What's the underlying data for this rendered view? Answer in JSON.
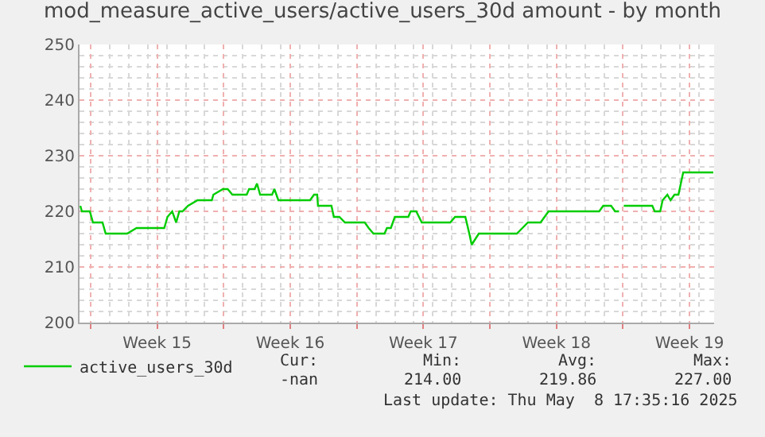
{
  "chart_data": {
    "type": "line",
    "title": "mod_measure_active_users/active_users_30d amount - by month",
    "x": [
      "2025-04-06T11:00",
      "2025-04-06T13:00",
      "2025-04-06T23:00",
      "2025-04-07T03:00",
      "2025-04-07T15:00",
      "2025-04-07T19:00",
      "2025-04-08T22:00",
      "2025-04-09T10:00",
      "2025-04-10T21:00",
      "2025-04-11T01:00",
      "2025-04-11T07:00",
      "2025-04-11T12:00",
      "2025-04-11T16:00",
      "2025-04-11T20:00",
      "2025-04-12T03:00",
      "2025-04-12T15:00",
      "2025-04-13T09:00",
      "2025-04-13T11:00",
      "2025-04-13T23:00",
      "2025-04-14T05:00",
      "2025-04-14T11:00",
      "2025-04-15T05:00",
      "2025-04-15T08:00",
      "2025-04-15T15:00",
      "2025-04-15T18:00",
      "2025-04-15T22:00",
      "2025-04-16T13:00",
      "2025-04-16T16:00",
      "2025-04-16T21:00",
      "2025-04-18T13:00",
      "2025-04-18T18:00",
      "2025-04-18T22:00",
      "2025-04-18T23:00",
      "2025-04-19T16:00",
      "2025-04-19T19:00",
      "2025-04-20T02:00",
      "2025-04-20T09:00",
      "2025-04-21T10:00",
      "2025-04-21T15:00",
      "2025-04-21T21:00",
      "2025-04-22T11:00",
      "2025-04-22T14:00",
      "2025-04-22T19:00",
      "2025-04-23T00:00",
      "2025-04-23T17:00",
      "2025-04-23T20:00",
      "2025-04-24T03:00",
      "2025-04-24T10:00",
      "2025-04-25T22:00",
      "2025-04-26T04:00",
      "2025-04-26T17:00",
      "2025-04-26T22:00",
      "2025-04-27T01:00",
      "2025-04-27T10:00",
      "2025-04-29T10:00",
      "2025-04-29T17:00",
      "2025-04-30T00:00",
      "2025-04-30T16:00",
      "2025-05-01T02:00",
      "2025-05-03T18:00",
      "2025-05-03T23:00",
      "2025-05-04T09:00",
      "2025-05-04T14:00",
      "2025-05-04T19:00",
      "2025-05-05T00:00",
      "2025-05-05T01:00",
      "2025-05-06T13:00",
      "2025-05-06T16:00",
      "2025-05-06T23:00",
      "2025-05-07T02:00",
      "2025-05-07T08:00",
      "2025-05-07T12:00",
      "2025-05-07T17:00",
      "2025-05-07T22:00",
      "2025-05-08T04:00",
      "2025-05-09T18:00"
    ],
    "series": [
      {
        "name": "active_users_30d",
        "color": "#00cc00",
        "values": [
          221,
          220,
          220,
          218,
          218,
          216,
          216,
          217,
          217,
          219,
          220,
          218,
          220,
          220,
          221,
          222,
          222,
          223,
          224,
          224,
          223,
          223,
          224,
          224,
          225,
          223,
          223,
          224,
          222,
          222,
          223,
          223,
          221,
          221,
          219,
          219,
          218,
          218,
          217,
          216,
          216,
          217,
          217,
          219,
          219,
          220,
          220,
          218,
          218,
          219,
          219,
          216,
          214,
          216,
          216,
          217,
          218,
          218,
          220,
          220,
          221,
          221,
          220,
          220,
          null,
          221,
          221,
          220,
          220,
          222,
          223,
          222,
          223,
          223,
          227,
          227
        ]
      }
    ],
    "xlim": [
      "2025-04-06T10:00",
      "2025-05-09T19:00"
    ],
    "xticks": [
      {
        "value": "2025-04-07",
        "label": null
      },
      {
        "value": "2025-04-10T12:00",
        "label": "Week 15"
      },
      {
        "value": "2025-04-14",
        "label": null
      },
      {
        "value": "2025-04-17T12:00",
        "label": "Week 16"
      },
      {
        "value": "2025-04-21",
        "label": null
      },
      {
        "value": "2025-04-24T12:00",
        "label": "Week 17"
      },
      {
        "value": "2025-04-28",
        "label": null
      },
      {
        "value": "2025-05-01T12:00",
        "label": "Week 18"
      },
      {
        "value": "2025-05-05",
        "label": null
      },
      {
        "value": "2025-05-08T12:00",
        "label": "Week 19"
      }
    ],
    "ylim": [
      200,
      250
    ],
    "yticks": [
      200,
      210,
      220,
      230,
      240,
      250
    ],
    "grid": true,
    "legend": "bottom left",
    "marker": "none",
    "line_style": "solid",
    "annotations": [
      "Cur:",
      "Min:",
      "Avg:",
      "Max:",
      "-nan",
      "214.00",
      "219.86",
      "227.00",
      "Last update: Thu May  8 17:35:16 2025"
    ]
  }
}
